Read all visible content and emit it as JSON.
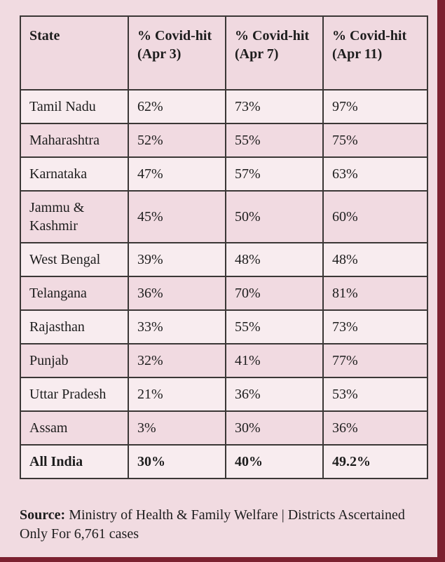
{
  "colors": {
    "page_background": "#f1dbe1",
    "row_light": "#f8ecef",
    "row_dark": "#f1dae1",
    "header_background": "#f0d9e0",
    "cell_border": "#3b3736",
    "edge_strip": "#7c2130",
    "text": "#1d1d1d"
  },
  "chart_data": {
    "type": "table",
    "title": "",
    "columns": [
      "State",
      "% Covid-hit (Apr 3)",
      "% Covid-hit (Apr 7)",
      "% Covid-hit (Apr 11)"
    ],
    "rows": [
      {
        "state": "Tamil Nadu",
        "apr3": "62%",
        "apr7": "73%",
        "apr11": "97%",
        "bold": false
      },
      {
        "state": "Maharashtra",
        "apr3": "52%",
        "apr7": "55%",
        "apr11": "75%",
        "bold": false
      },
      {
        "state": "Karnataka",
        "apr3": "47%",
        "apr7": "57%",
        "apr11": "63%",
        "bold": false
      },
      {
        "state": "Jammu & Kashmir",
        "apr3": "45%",
        "apr7": "50%",
        "apr11": "60%",
        "bold": false
      },
      {
        "state": "West Bengal",
        "apr3": "39%",
        "apr7": "48%",
        "apr11": "48%",
        "bold": false
      },
      {
        "state": "Telangana",
        "apr3": "36%",
        "apr7": "70%",
        "apr11": "81%",
        "bold": false
      },
      {
        "state": "Rajasthan",
        "apr3": "33%",
        "apr7": "55%",
        "apr11": "73%",
        "bold": false
      },
      {
        "state": "Punjab",
        "apr3": "32%",
        "apr7": "41%",
        "apr11": "77%",
        "bold": false
      },
      {
        "state": "Uttar Pradesh",
        "apr3": "21%",
        "apr7": "36%",
        "apr11": "53%",
        "bold": false
      },
      {
        "state": "Assam",
        "apr3": "3%",
        "apr7": "30%",
        "apr11": "36%",
        "bold": false
      },
      {
        "state": "All India",
        "apr3": "30%",
        "apr7": "40%",
        "apr11": "49.2%",
        "bold": true
      }
    ]
  },
  "source": {
    "label": "Source:",
    "text": " Ministry of Health & Family Welfare | Districts Ascertained Only For 6,761 cases"
  }
}
